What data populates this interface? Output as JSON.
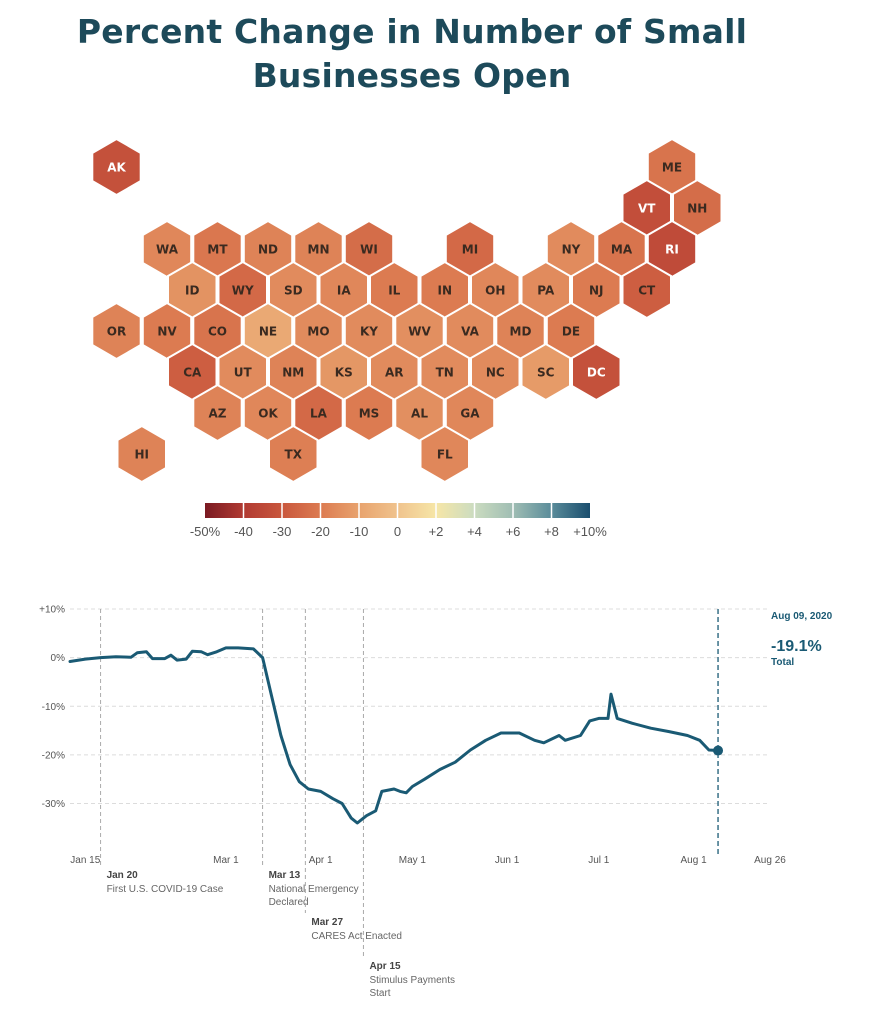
{
  "title_line1": "Percent Change in Number of Small",
  "title_line2": "Businesses Open",
  "colors": {
    "title": "#1d4a5a",
    "line": "#1a5a74",
    "scale": [
      "#7a1a22",
      "#b13a32",
      "#c9573d",
      "#dc7b51",
      "#e8a36e",
      "#f0c38d",
      "#f6e6a7",
      "#cbdcc0",
      "#9fbdb3",
      "#5a8c9a",
      "#1a4e6e"
    ]
  },
  "hexmap": {
    "legend_ticks": [
      "-50%",
      "-40",
      "-30",
      "-20",
      "-10",
      "0",
      "+2",
      "+4",
      "+6",
      "+8",
      "+10%"
    ],
    "states": [
      {
        "code": "AK",
        "row": 0,
        "col": 0,
        "value": -32
      },
      {
        "code": "ME",
        "row": 0,
        "col": 11,
        "value": -22
      },
      {
        "code": "VT",
        "row": 1,
        "col": 10,
        "value": -33
      },
      {
        "code": "NH",
        "row": 1,
        "col": 11,
        "value": -24
      },
      {
        "code": "WA",
        "row": 2,
        "col": 1,
        "value": -17
      },
      {
        "code": "MT",
        "row": 2,
        "col": 2,
        "value": -21
      },
      {
        "code": "ND",
        "row": 2,
        "col": 3,
        "value": -18
      },
      {
        "code": "MN",
        "row": 2,
        "col": 4,
        "value": -18
      },
      {
        "code": "WI",
        "row": 2,
        "col": 5,
        "value": -24
      },
      {
        "code": "MI",
        "row": 2,
        "col": 7,
        "value": -25
      },
      {
        "code": "NY",
        "row": 2,
        "col": 9,
        "value": -16
      },
      {
        "code": "MA",
        "row": 2,
        "col": 10,
        "value": -22
      },
      {
        "code": "RI",
        "row": 2,
        "col": 11,
        "value": -34
      },
      {
        "code": "ID",
        "row": 3,
        "col": 1,
        "value": -14
      },
      {
        "code": "WY",
        "row": 3,
        "col": 2,
        "value": -25
      },
      {
        "code": "SD",
        "row": 3,
        "col": 3,
        "value": -16
      },
      {
        "code": "IA",
        "row": 3,
        "col": 4,
        "value": -17
      },
      {
        "code": "IL",
        "row": 3,
        "col": 5,
        "value": -20
      },
      {
        "code": "IN",
        "row": 3,
        "col": 6,
        "value": -20
      },
      {
        "code": "OH",
        "row": 3,
        "col": 7,
        "value": -17
      },
      {
        "code": "PA",
        "row": 3,
        "col": 8,
        "value": -16
      },
      {
        "code": "NJ",
        "row": 3,
        "col": 9,
        "value": -20
      },
      {
        "code": "CT",
        "row": 3,
        "col": 10,
        "value": -28
      },
      {
        "code": "OR",
        "row": 4,
        "col": 0,
        "value": -18
      },
      {
        "code": "NV",
        "row": 4,
        "col": 1,
        "value": -20
      },
      {
        "code": "CO",
        "row": 4,
        "col": 2,
        "value": -22
      },
      {
        "code": "NE",
        "row": 4,
        "col": 3,
        "value": -8
      },
      {
        "code": "MO",
        "row": 4,
        "col": 4,
        "value": -16
      },
      {
        "code": "KY",
        "row": 4,
        "col": 5,
        "value": -16
      },
      {
        "code": "WV",
        "row": 4,
        "col": 6,
        "value": -15
      },
      {
        "code": "VA",
        "row": 4,
        "col": 7,
        "value": -16
      },
      {
        "code": "MD",
        "row": 4,
        "col": 8,
        "value": -18
      },
      {
        "code": "DE",
        "row": 4,
        "col": 9,
        "value": -20
      },
      {
        "code": "CA",
        "row": 5,
        "col": 1,
        "value": -28
      },
      {
        "code": "UT",
        "row": 5,
        "col": 2,
        "value": -16
      },
      {
        "code": "NM",
        "row": 5,
        "col": 3,
        "value": -18
      },
      {
        "code": "KS",
        "row": 5,
        "col": 4,
        "value": -13
      },
      {
        "code": "AR",
        "row": 5,
        "col": 5,
        "value": -16
      },
      {
        "code": "TN",
        "row": 5,
        "col": 6,
        "value": -16
      },
      {
        "code": "NC",
        "row": 5,
        "col": 7,
        "value": -16
      },
      {
        "code": "SC",
        "row": 5,
        "col": 8,
        "value": -12
      },
      {
        "code": "DC",
        "row": 5,
        "col": 9,
        "value": -32
      },
      {
        "code": "AZ",
        "row": 6,
        "col": 2,
        "value": -18
      },
      {
        "code": "OK",
        "row": 6,
        "col": 3,
        "value": -17
      },
      {
        "code": "LA",
        "row": 6,
        "col": 4,
        "value": -25
      },
      {
        "code": "MS",
        "row": 6,
        "col": 5,
        "value": -20
      },
      {
        "code": "AL",
        "row": 6,
        "col": 6,
        "value": -15
      },
      {
        "code": "GA",
        "row": 6,
        "col": 7,
        "value": -17
      },
      {
        "code": "HI",
        "row": 7,
        "col": 0,
        "value": -18
      },
      {
        "code": "TX",
        "row": 7,
        "col": 3,
        "value": -19
      },
      {
        "code": "FL",
        "row": 7,
        "col": 6,
        "value": -17
      }
    ]
  },
  "chart_data": {
    "type": "line",
    "y_ticks": [
      "+10%",
      "0%",
      "-10%",
      "-20%",
      "-30%"
    ],
    "y_tick_values": [
      10,
      0,
      -10,
      -20,
      -30
    ],
    "ylim": [
      -34,
      10
    ],
    "x_ticks": [
      {
        "label": "Jan 15",
        "date": "2020-01-15"
      },
      {
        "label": "Mar 1",
        "date": "2020-03-01"
      },
      {
        "label": "Apr 1",
        "date": "2020-04-01"
      },
      {
        "label": "May 1",
        "date": "2020-05-01"
      },
      {
        "label": "Jun 1",
        "date": "2020-06-01"
      },
      {
        "label": "Jul 1",
        "date": "2020-07-01"
      },
      {
        "label": "Aug 1",
        "date": "2020-08-01"
      },
      {
        "label": "Aug 26",
        "date": "2020-08-26"
      }
    ],
    "xlim": [
      "2020-01-10",
      "2020-08-26"
    ],
    "series": [
      {
        "points": [
          [
            "2020-01-10",
            -0.8
          ],
          [
            "2020-01-15",
            -0.3
          ],
          [
            "2020-01-20",
            0.0
          ],
          [
            "2020-01-25",
            0.2
          ],
          [
            "2020-01-30",
            0.1
          ],
          [
            "2020-02-01",
            1.0
          ],
          [
            "2020-02-04",
            1.2
          ],
          [
            "2020-02-06",
            -0.2
          ],
          [
            "2020-02-10",
            -0.2
          ],
          [
            "2020-02-12",
            0.5
          ],
          [
            "2020-02-14",
            -0.5
          ],
          [
            "2020-02-17",
            -0.3
          ],
          [
            "2020-02-19",
            1.3
          ],
          [
            "2020-02-22",
            1.2
          ],
          [
            "2020-02-24",
            0.6
          ],
          [
            "2020-02-27",
            1.2
          ],
          [
            "2020-03-01",
            2.0
          ],
          [
            "2020-03-05",
            2.0
          ],
          [
            "2020-03-10",
            1.8
          ],
          [
            "2020-03-13",
            0.0
          ],
          [
            "2020-03-16",
            -8.0
          ],
          [
            "2020-03-19",
            -16.0
          ],
          [
            "2020-03-22",
            -22.0
          ],
          [
            "2020-03-25",
            -25.5
          ],
          [
            "2020-03-28",
            -27.0
          ],
          [
            "2020-04-01",
            -27.5
          ],
          [
            "2020-04-05",
            -29.0
          ],
          [
            "2020-04-08",
            -30.0
          ],
          [
            "2020-04-11",
            -33.0
          ],
          [
            "2020-04-13",
            -34.0
          ],
          [
            "2020-04-16",
            -32.5
          ],
          [
            "2020-04-19",
            -31.5
          ],
          [
            "2020-04-21",
            -27.5
          ],
          [
            "2020-04-25",
            -27.0
          ],
          [
            "2020-04-27",
            -27.5
          ],
          [
            "2020-04-29",
            -27.8
          ],
          [
            "2020-05-01",
            -26.5
          ],
          [
            "2020-05-05",
            -25.0
          ],
          [
            "2020-05-10",
            -23.0
          ],
          [
            "2020-05-15",
            -21.5
          ],
          [
            "2020-05-20",
            -19.0
          ],
          [
            "2020-05-25",
            -17.0
          ],
          [
            "2020-05-30",
            -15.5
          ],
          [
            "2020-06-05",
            -15.5
          ],
          [
            "2020-06-10",
            -17.0
          ],
          [
            "2020-06-13",
            -17.5
          ],
          [
            "2020-06-18",
            -16.0
          ],
          [
            "2020-06-20",
            -17.0
          ],
          [
            "2020-06-25",
            -16.0
          ],
          [
            "2020-06-28",
            -13.0
          ],
          [
            "2020-07-01",
            -12.5
          ],
          [
            "2020-07-04",
            -12.5
          ],
          [
            "2020-07-05",
            -7.5
          ],
          [
            "2020-07-07",
            -12.5
          ],
          [
            "2020-07-12",
            -13.5
          ],
          [
            "2020-07-18",
            -14.5
          ],
          [
            "2020-07-24",
            -15.2
          ],
          [
            "2020-07-30",
            -16.0
          ],
          [
            "2020-08-03",
            -17.0
          ],
          [
            "2020-08-06",
            -19.0
          ],
          [
            "2020-08-09",
            -19.1
          ]
        ]
      }
    ],
    "end_label": {
      "date": "Aug 09, 2020",
      "value": "-19.1%",
      "name": "Total"
    },
    "end_date": "2020-08-09",
    "annotations": [
      {
        "date": "2020-01-20",
        "label": "Jan 20",
        "text": [
          "First U.S. COVID-19 Case"
        ]
      },
      {
        "date": "2020-03-13",
        "label": "Mar 13",
        "text": [
          "National Emergency",
          "Declared"
        ]
      },
      {
        "date": "2020-03-27",
        "label": "Mar 27",
        "text": [
          "CARES Act Enacted"
        ]
      },
      {
        "date": "2020-04-15",
        "label": "Apr 15",
        "text": [
          "Stimulus Payments",
          "Start"
        ]
      }
    ]
  }
}
